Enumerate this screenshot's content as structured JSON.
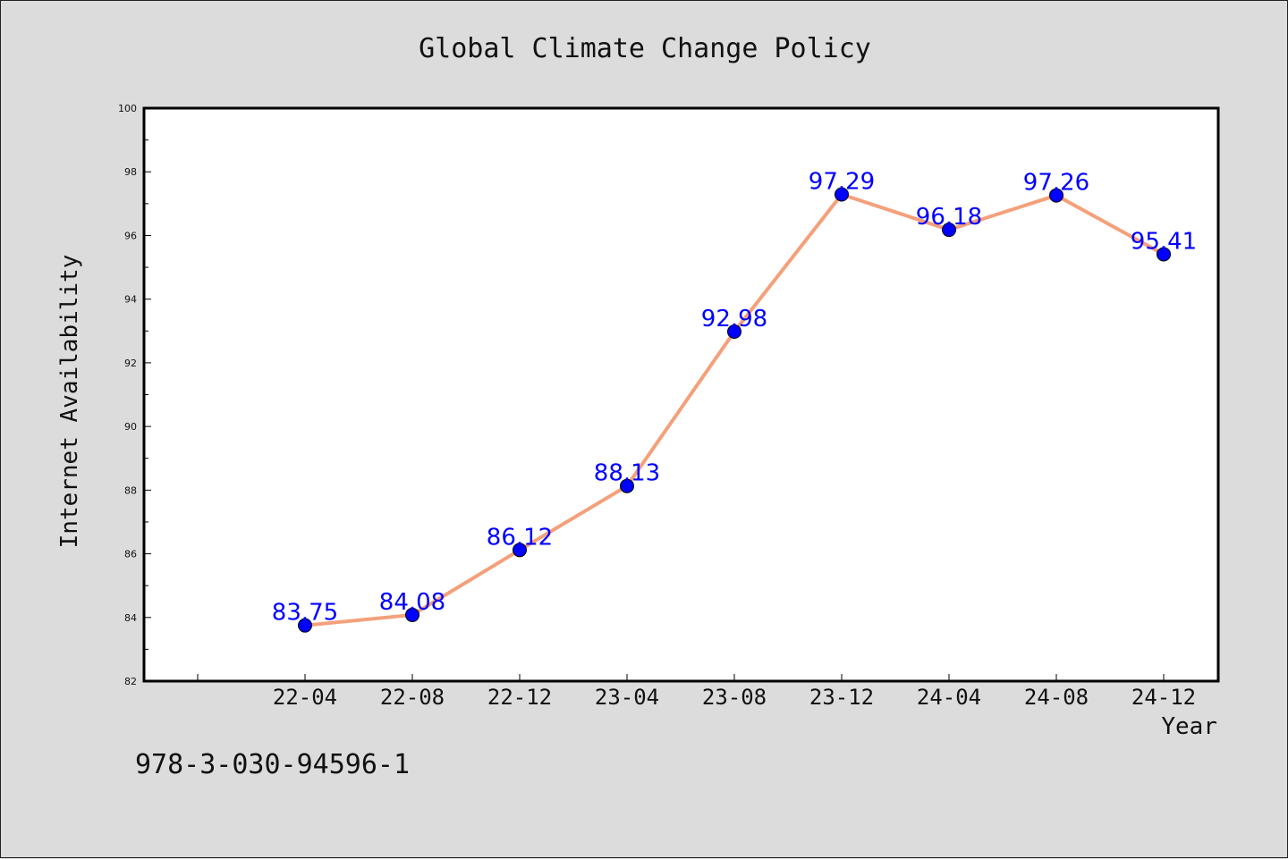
{
  "chart_data": {
    "type": "line",
    "title": "Global Climate Change Policy",
    "xlabel": "Year",
    "ylabel": "Internet Availability",
    "categories": [
      "22-04",
      "22-08",
      "22-12",
      "23-04",
      "23-08",
      "23-12",
      "24-04",
      "24-08",
      "24-12"
    ],
    "series": [
      {
        "values": [
          83.75,
          84.08,
          86.12,
          88.13,
          92.98,
          97.29,
          96.18,
          97.26,
          95.41
        ],
        "data_labels": [
          "83.75",
          "84.08",
          "86.12",
          "88.13",
          "92.98",
          "97.29",
          "96.18",
          "97.26",
          "95.41"
        ],
        "line_color": "#f4a07a",
        "marker_color": "#0000ff"
      }
    ],
    "ylim": [
      82,
      100
    ],
    "yticks": [
      82,
      84,
      86,
      88,
      90,
      92,
      94,
      96,
      98,
      100
    ],
    "ytick_labels": [
      "82",
      "84",
      "86",
      "88",
      "90",
      "92",
      "94",
      "96",
      "98",
      "100"
    ],
    "grid": false,
    "legend": "none"
  },
  "footer_text": "978-3-030-94596-1"
}
